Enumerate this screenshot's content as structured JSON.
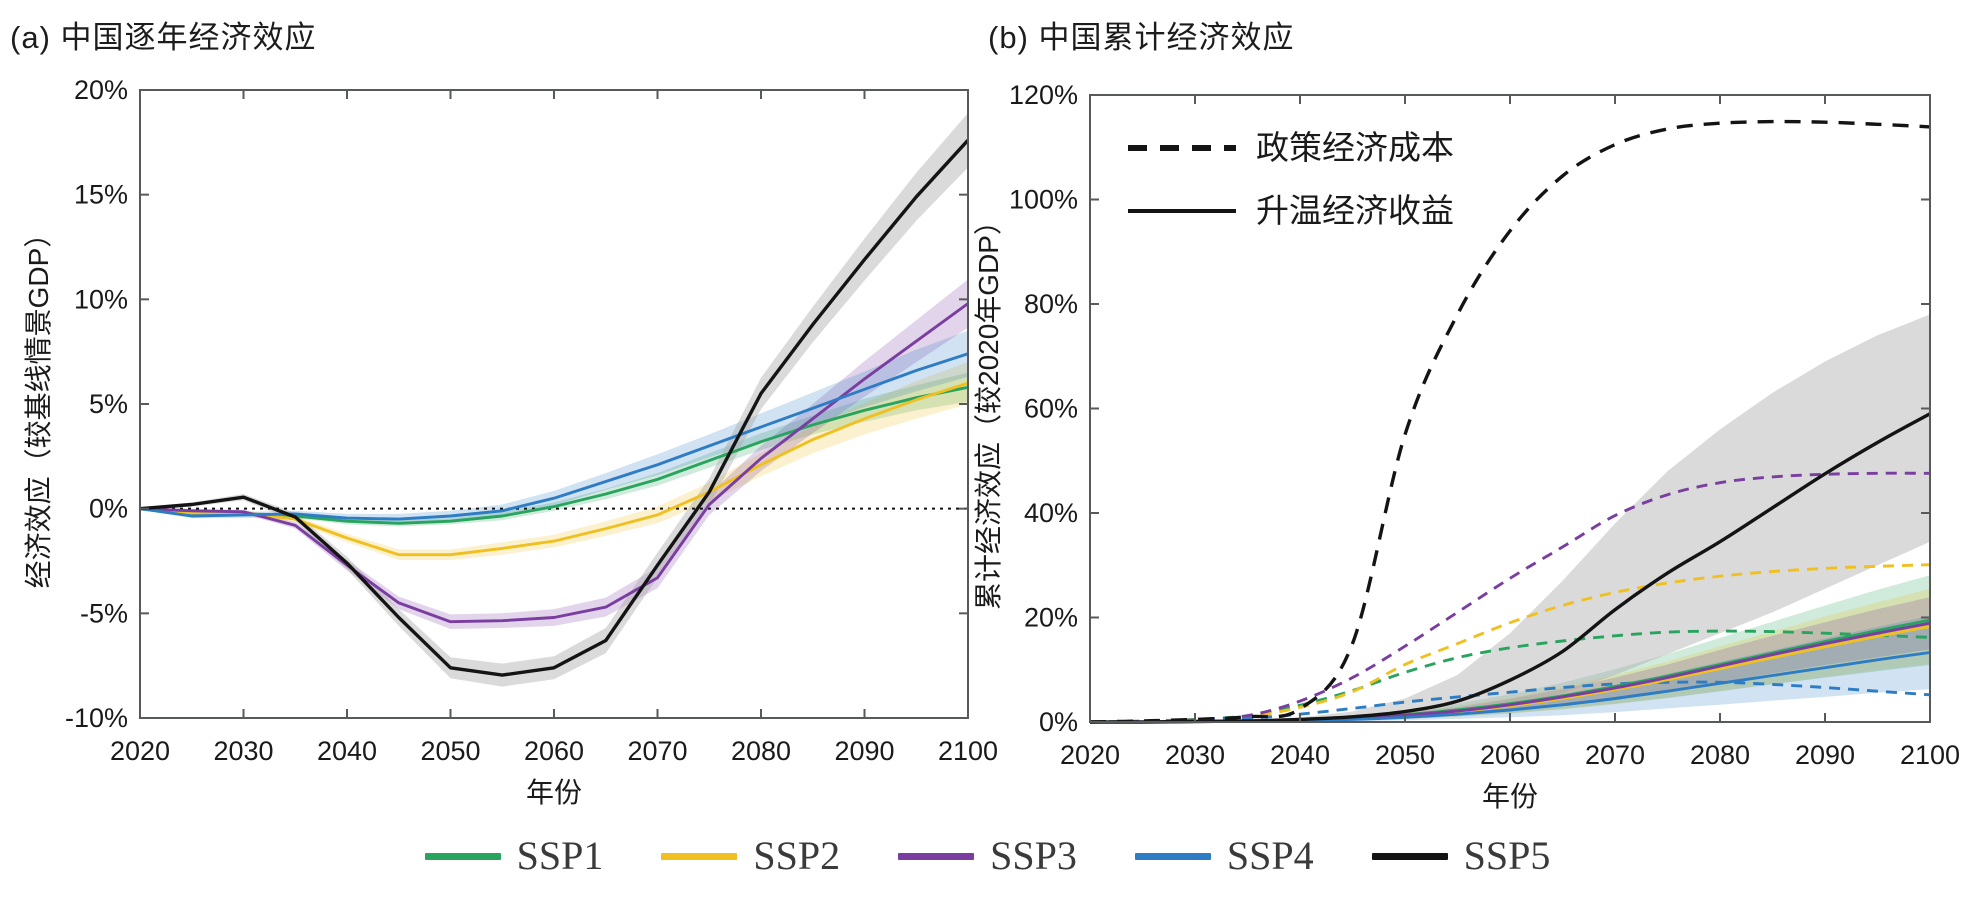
{
  "chart_data": [
    {
      "type": "line",
      "id": "a",
      "title": "(a) 中国逐年经济效应",
      "xlabel": "年份",
      "ylabel": "经济效应（较基线情景GDP）",
      "xlim": [
        2020,
        2100
      ],
      "ylim": [
        -10,
        20
      ],
      "grid": false,
      "zero_line": true,
      "xticks": [
        2020,
        2030,
        2040,
        2050,
        2060,
        2070,
        2080,
        2090,
        2100
      ],
      "xticklabels": [
        "2020",
        "2030",
        "2040",
        "2050",
        "2060",
        "2070",
        "2080",
        "2090",
        "2100"
      ],
      "yticks": [
        20,
        15,
        10,
        5,
        0,
        -5,
        -10
      ],
      "yticklabels": [
        "20%",
        "15%",
        "10%",
        "5%",
        "0%",
        "-5%",
        "-10%"
      ],
      "x": [
        2020,
        2025,
        2030,
        2035,
        2040,
        2045,
        2050,
        2055,
        2060,
        2065,
        2070,
        2075,
        2080,
        2085,
        2090,
        2095,
        2100
      ],
      "series": [
        {
          "name": "SSP1",
          "color": "#29a45e",
          "style": "solid",
          "values": [
            0,
            -0.3,
            -0.25,
            -0.35,
            -0.6,
            -0.7,
            -0.6,
            -0.35,
            0.1,
            0.7,
            1.4,
            2.3,
            3.2,
            4.0,
            4.7,
            5.3,
            5.8
          ],
          "bandw": [
            0.05,
            0.1,
            0.1,
            0.1,
            0.15,
            0.15,
            0.15,
            0.2,
            0.2,
            0.25,
            0.3,
            0.35,
            0.4,
            0.45,
            0.55,
            0.6,
            0.7
          ]
        },
        {
          "name": "SSP2",
          "color": "#efc020",
          "style": "solid",
          "values": [
            0,
            -0.2,
            -0.2,
            -0.5,
            -1.4,
            -2.2,
            -2.2,
            -1.9,
            -1.55,
            -0.95,
            -0.3,
            0.8,
            2.1,
            3.3,
            4.3,
            5.2,
            6.0
          ],
          "bandw": [
            0.05,
            0.1,
            0.1,
            0.15,
            0.2,
            0.25,
            0.25,
            0.3,
            0.3,
            0.35,
            0.4,
            0.45,
            0.55,
            0.65,
            0.75,
            0.9,
            1.0
          ]
        },
        {
          "name": "SSP3",
          "color": "#7a3da0",
          "style": "solid",
          "values": [
            0,
            -0.1,
            -0.15,
            -0.8,
            -2.7,
            -4.5,
            -5.4,
            -5.35,
            -5.2,
            -4.7,
            -3.3,
            0.2,
            2.4,
            4.3,
            6.2,
            8.0,
            9.8
          ],
          "bandw": [
            0.05,
            0.1,
            0.1,
            0.15,
            0.25,
            0.3,
            0.35,
            0.35,
            0.4,
            0.45,
            0.5,
            0.5,
            0.6,
            0.7,
            0.85,
            1.0,
            1.15
          ]
        },
        {
          "name": "SSP4",
          "color": "#2d7cc4",
          "style": "solid",
          "values": [
            0,
            -0.35,
            -0.3,
            -0.25,
            -0.45,
            -0.5,
            -0.35,
            -0.1,
            0.5,
            1.3,
            2.1,
            3.0,
            3.9,
            4.8,
            5.7,
            6.6,
            7.4
          ],
          "bandw": [
            0.05,
            0.1,
            0.15,
            0.15,
            0.2,
            0.25,
            0.25,
            0.3,
            0.35,
            0.4,
            0.5,
            0.55,
            0.65,
            0.75,
            0.85,
            1.0,
            1.1
          ]
        },
        {
          "name": "SSP5",
          "color": "#141414",
          "style": "solid",
          "band_color": "#a8a8a8",
          "values": [
            0,
            0.2,
            0.55,
            -0.4,
            -2.6,
            -5.2,
            -7.6,
            -7.95,
            -7.6,
            -6.3,
            -2.7,
            0.8,
            5.5,
            8.8,
            11.9,
            14.9,
            17.6
          ],
          "bandw": [
            0.05,
            0.1,
            0.15,
            0.2,
            0.3,
            0.4,
            0.5,
            0.55,
            0.55,
            0.6,
            0.6,
            0.65,
            0.75,
            0.85,
            1.0,
            1.15,
            1.3
          ]
        }
      ]
    },
    {
      "type": "line",
      "id": "b",
      "title": "(b) 中国累计经济效应",
      "xlabel": "年份",
      "ylabel": "累计经济效应（较2020年GDP）",
      "xlim": [
        2020,
        2100
      ],
      "ylim": [
        0,
        120
      ],
      "grid": false,
      "zero_line": false,
      "xticks": [
        2020,
        2030,
        2040,
        2050,
        2060,
        2070,
        2080,
        2090,
        2100
      ],
      "xticklabels": [
        "2020",
        "2030",
        "2040",
        "2050",
        "2060",
        "2070",
        "2080",
        "2090",
        "2100"
      ],
      "yticks": [
        120,
        100,
        80,
        60,
        40,
        20,
        0
      ],
      "yticklabels": [
        "120%",
        "100%",
        "80%",
        "60%",
        "40%",
        "20%",
        "0%"
      ],
      "x": [
        2020,
        2025,
        2030,
        2035,
        2040,
        2045,
        2050,
        2055,
        2060,
        2065,
        2070,
        2075,
        2080,
        2085,
        2090,
        2095,
        2100
      ],
      "legend": {
        "items": [
          {
            "style": "dashed",
            "label": "政策经济成本"
          },
          {
            "style": "solid",
            "label": "升温经济收益"
          }
        ]
      },
      "series": [
        {
          "name": "SSP1",
          "group": "政策经济成本",
          "color": "#29a45e",
          "style": "dashed",
          "values": [
            0,
            0.2,
            0.5,
            1.2,
            3.2,
            6,
            9.5,
            12.3,
            14.2,
            15.5,
            16.5,
            17.2,
            17.4,
            17.3,
            17,
            16.6,
            16.2
          ]
        },
        {
          "name": "SSP2",
          "group": "政策经济成本",
          "color": "#efc020",
          "style": "dashed",
          "values": [
            0,
            0.1,
            0.4,
            1.0,
            2.8,
            5.8,
            11,
            15,
            19,
            22.3,
            24.8,
            26.6,
            27.9,
            28.8,
            29.4,
            29.8,
            30.1
          ]
        },
        {
          "name": "SSP3",
          "group": "政策经济成本",
          "color": "#7a3da0",
          "style": "dashed",
          "values": [
            0,
            0.1,
            0.4,
            1.2,
            4,
            8.5,
            14.5,
            21,
            27.5,
            33.5,
            39.5,
            43.5,
            45.8,
            46.9,
            47.4,
            47.6,
            47.6
          ]
        },
        {
          "name": "SSP4",
          "group": "政策经济成本",
          "color": "#2d7cc4",
          "style": "dashed",
          "values": [
            0,
            0.1,
            0.3,
            0.7,
            1.5,
            2.6,
            3.8,
            4.8,
            5.7,
            6.6,
            7.3,
            7.6,
            7.6,
            7.2,
            6.6,
            5.9,
            5.2
          ]
        },
        {
          "name": "SSP5",
          "group": "政策经济成本",
          "color": "#141414",
          "style": "dashed",
          "values": [
            0,
            0.2,
            0.5,
            1,
            2.5,
            15,
            55,
            78,
            94,
            104.5,
            110.5,
            113.5,
            114.6,
            114.9,
            114.8,
            114.4,
            113.9
          ]
        },
        {
          "name": "SSP1",
          "group": "升温经济收益",
          "color": "#29a45e",
          "style": "solid",
          "values": [
            0,
            0,
            0.1,
            0.2,
            0.4,
            0.8,
            1.4,
            2.3,
            3.5,
            5,
            6.8,
            8.8,
            11,
            13.2,
            15.4,
            17.5,
            19.5
          ],
          "bandw": [
            0,
            0,
            0.1,
            0.2,
            0.3,
            0.5,
            0.8,
            1.2,
            1.8,
            2.5,
            3.3,
            4.2,
            5.1,
            6,
            6.9,
            7.8,
            8.6
          ]
        },
        {
          "name": "SSP2",
          "group": "升温经济收益",
          "color": "#efc020",
          "style": "solid",
          "values": [
            0,
            0,
            0.1,
            0.2,
            0.4,
            0.7,
            1.2,
            2,
            3.1,
            4.5,
            6.2,
            8.1,
            10.2,
            12.3,
            14.4,
            16.4,
            18.3
          ],
          "bandw": [
            0,
            0,
            0.1,
            0.15,
            0.25,
            0.4,
            0.65,
            1,
            1.5,
            2.1,
            2.8,
            3.5,
            4.3,
            5,
            5.8,
            6.5,
            7.2
          ]
        },
        {
          "name": "SSP3",
          "group": "升温经济收益",
          "color": "#7a3da0",
          "style": "solid",
          "values": [
            0,
            0,
            0.1,
            0.2,
            0.4,
            0.8,
            1.3,
            2.1,
            3.3,
            4.8,
            6.5,
            8.5,
            10.7,
            12.9,
            15,
            17,
            18.9
          ],
          "bandw": [
            0,
            0,
            0.05,
            0.1,
            0.2,
            0.3,
            0.5,
            0.75,
            1.1,
            1.5,
            2,
            2.5,
            3.1,
            3.6,
            4.1,
            4.6,
            5
          ]
        },
        {
          "name": "SSP4",
          "group": "升温经济收益",
          "color": "#2d7cc4",
          "style": "solid",
          "values": [
            0,
            0,
            0.1,
            0.1,
            0.3,
            0.5,
            0.9,
            1.5,
            2.3,
            3.3,
            4.5,
            5.9,
            7.4,
            8.9,
            10.4,
            11.9,
            13.3
          ],
          "bandw": [
            0,
            0,
            0.05,
            0.1,
            0.2,
            0.35,
            0.6,
            0.9,
            1.4,
            2,
            2.6,
            3.3,
            4.1,
            4.8,
            5.6,
            6.3,
            7
          ]
        },
        {
          "name": "SSP5",
          "group": "升温经济收益",
          "color": "#141414",
          "style": "solid",
          "band_color": "#a8a8a8",
          "values": [
            0,
            0,
            0.1,
            0.2,
            0.5,
            1,
            2,
            4,
            8,
            13.5,
            21.5,
            28.5,
            34.5,
            41,
            47.5,
            53.5,
            59
          ],
          "band_upper": [
            0,
            0.1,
            0.2,
            0.4,
            0.9,
            2,
            4.5,
            9,
            17,
            27,
            38,
            48,
            56,
            63,
            69,
            74,
            78
          ],
          "band_lower": [
            0,
            0,
            0,
            0.1,
            0.2,
            0.4,
            0.8,
            1.6,
            3,
            5.5,
            9,
            13,
            17,
            21,
            25.5,
            30,
            34.5
          ]
        }
      ]
    }
  ],
  "legend": {
    "items": [
      {
        "label": "SSP1",
        "color": "#29a45e"
      },
      {
        "label": "SSP2",
        "color": "#efc020"
      },
      {
        "label": "SSP3",
        "color": "#7a3da0"
      },
      {
        "label": "SSP4",
        "color": "#2d7cc4"
      },
      {
        "label": "SSP5",
        "color": "#141414"
      }
    ]
  }
}
